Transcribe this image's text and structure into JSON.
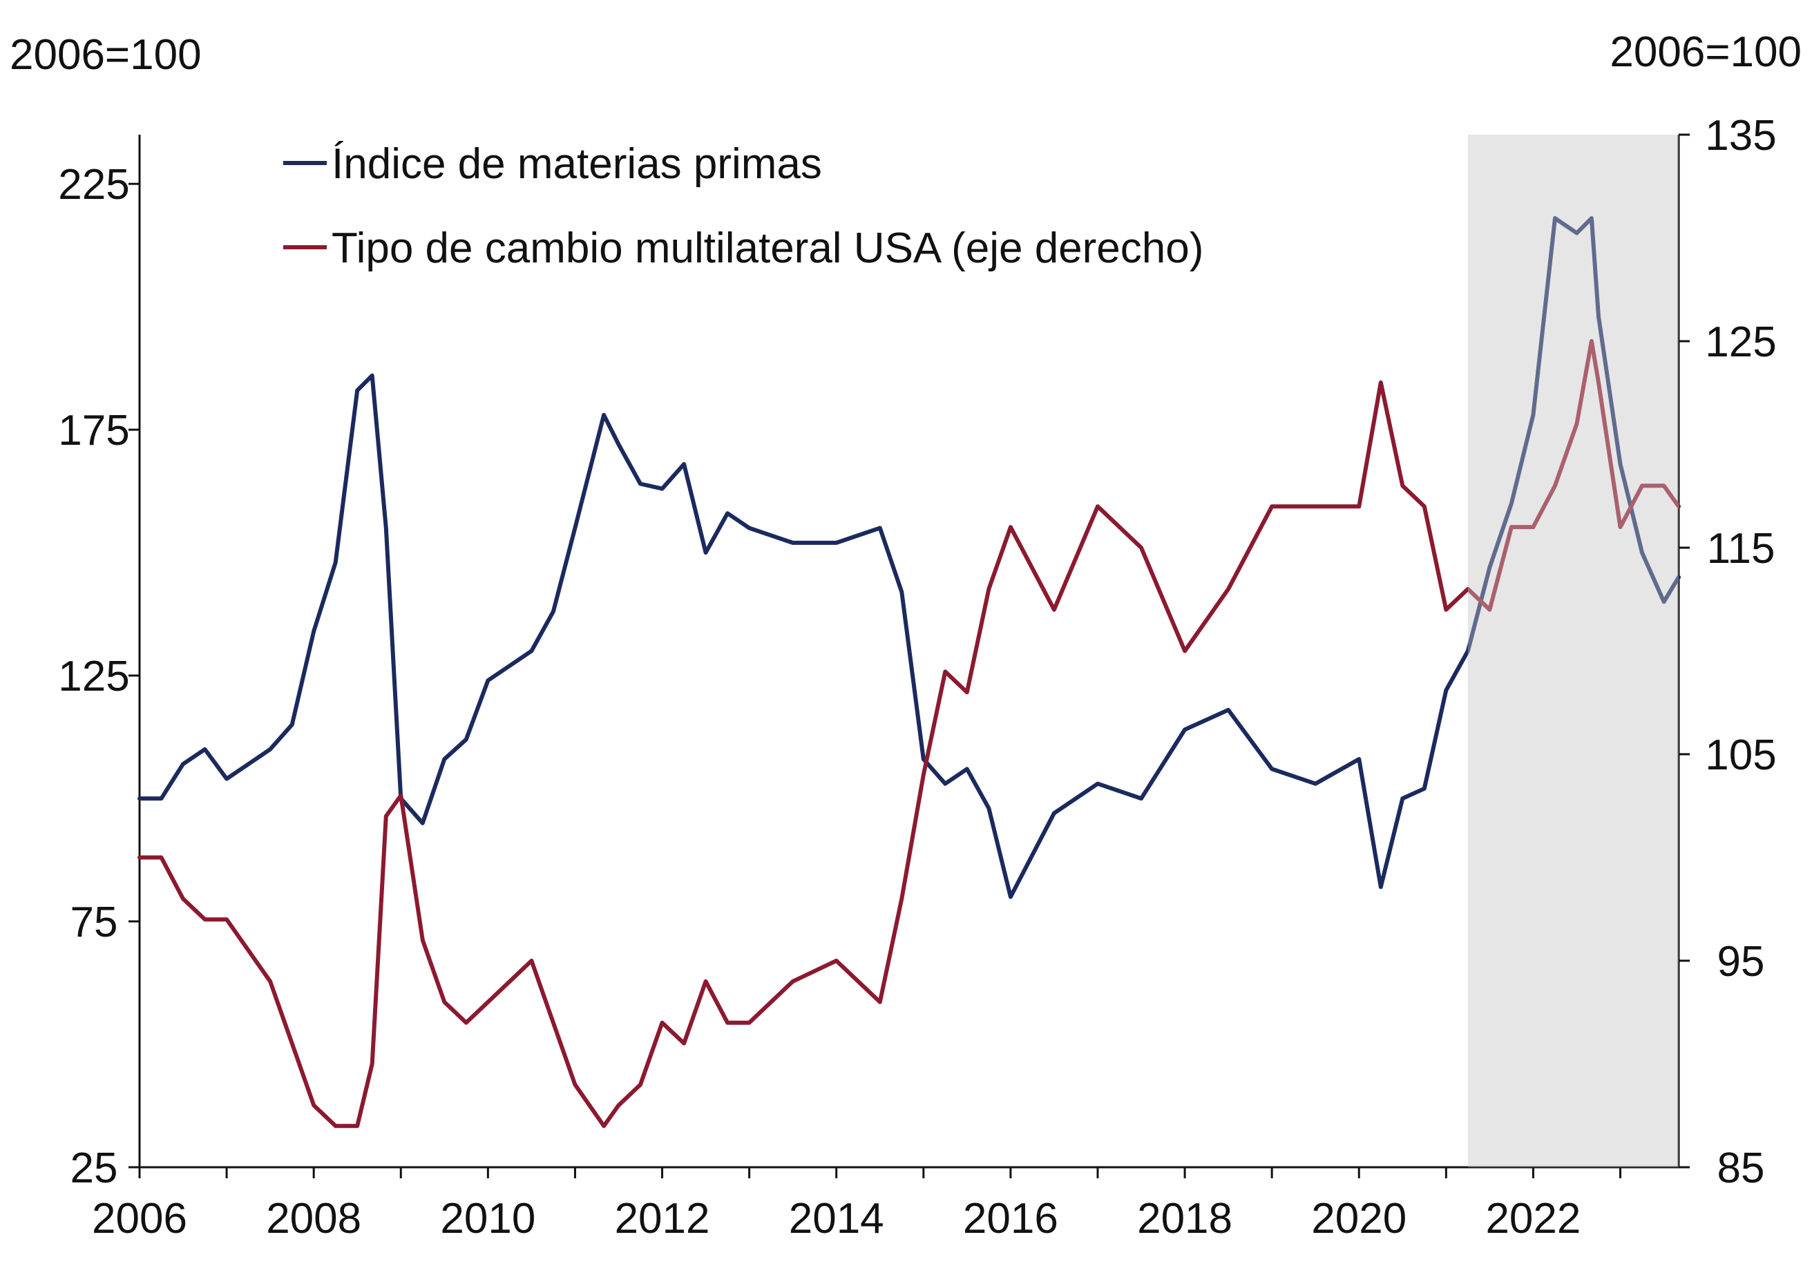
{
  "chart_data": {
    "type": "line",
    "left_unit_label": "2006=100",
    "right_unit_label": "2006=100",
    "x_ticks": [
      "2006",
      "2008",
      "2010",
      "2012",
      "2014",
      "2016",
      "2018",
      "2020",
      "2022"
    ],
    "x_range": [
      2006.0,
      2023.67
    ],
    "left_ticks": [
      25,
      75,
      125,
      175,
      225
    ],
    "left_range": [
      25,
      235
    ],
    "right_ticks": [
      85,
      95,
      105,
      115,
      125,
      135
    ],
    "right_range": [
      85,
      135
    ],
    "shaded_period": [
      2021.25,
      2023.67
    ],
    "colors": {
      "commodity": "#1b2a5e",
      "fx": "#8b1a30",
      "shade": "#e6e6e6"
    },
    "series": [
      {
        "name": "Índice de materias primas",
        "axis": "left",
        "color": "#1b2a5e",
        "x": [
          2006.0,
          2006.25,
          2006.5,
          2006.75,
          2007.0,
          2007.5,
          2007.75,
          2008.0,
          2008.25,
          2008.5,
          2008.67,
          2008.83,
          2009.0,
          2009.25,
          2009.5,
          2009.75,
          2010.0,
          2010.5,
          2010.75,
          2011.0,
          2011.33,
          2011.5,
          2011.75,
          2012.0,
          2012.25,
          2012.5,
          2012.75,
          2013.0,
          2013.5,
          2014.0,
          2014.5,
          2014.75,
          2015.0,
          2015.25,
          2015.5,
          2015.75,
          2016.0,
          2016.5,
          2017.0,
          2017.5,
          2018.0,
          2018.5,
          2019.0,
          2019.5,
          2020.0,
          2020.25,
          2020.5,
          2020.75,
          2021.0,
          2021.25,
          2021.5,
          2021.75,
          2022.0,
          2022.25,
          2022.5,
          2022.67,
          2022.75,
          2023.0,
          2023.25,
          2023.5,
          2023.67
        ],
        "values": [
          100,
          100,
          107,
          110,
          104,
          110,
          115,
          134,
          148,
          183,
          186,
          155,
          100,
          95,
          108,
          112,
          124,
          130,
          138,
          155,
          178,
          172,
          164,
          163,
          168,
          150,
          158,
          155,
          152,
          152,
          155,
          142,
          108,
          103,
          106,
          98,
          80,
          97,
          103,
          100,
          114,
          118,
          106,
          103,
          108,
          82,
          100,
          102,
          122,
          130,
          147,
          160,
          178,
          218,
          215,
          218,
          198,
          168,
          150,
          140,
          145
        ]
      },
      {
        "name": "Tipo de cambio multilateral USA (eje derecho)",
        "axis": "right",
        "color": "#8b1a30",
        "x": [
          2006.0,
          2006.25,
          2006.5,
          2006.75,
          2007.0,
          2007.5,
          2007.75,
          2008.0,
          2008.25,
          2008.5,
          2008.67,
          2008.83,
          2009.0,
          2009.25,
          2009.5,
          2009.75,
          2010.0,
          2010.5,
          2010.75,
          2011.0,
          2011.33,
          2011.5,
          2011.75,
          2012.0,
          2012.25,
          2012.5,
          2012.75,
          2013.0,
          2013.5,
          2014.0,
          2014.5,
          2014.75,
          2015.0,
          2015.25,
          2015.5,
          2015.75,
          2016.0,
          2016.5,
          2017.0,
          2017.5,
          2018.0,
          2018.5,
          2019.0,
          2019.5,
          2020.0,
          2020.25,
          2020.5,
          2020.75,
          2021.0,
          2021.25,
          2021.5,
          2021.75,
          2022.0,
          2022.25,
          2022.5,
          2022.67,
          2022.75,
          2023.0,
          2023.25,
          2023.5,
          2023.67
        ],
        "values": [
          100,
          100,
          98,
          97,
          97,
          94,
          91,
          88,
          87,
          87,
          90,
          102,
          103,
          96,
          93,
          92,
          93,
          95,
          92,
          89,
          87,
          88,
          89,
          92,
          91,
          94,
          92,
          92,
          94,
          95,
          93,
          98,
          104,
          109,
          108,
          113,
          116,
          112,
          117,
          115,
          110,
          113,
          117,
          117,
          117,
          123,
          118,
          117,
          112,
          113,
          112,
          116,
          116,
          118,
          121,
          125,
          123,
          116,
          118,
          118,
          117
        ]
      }
    ]
  }
}
